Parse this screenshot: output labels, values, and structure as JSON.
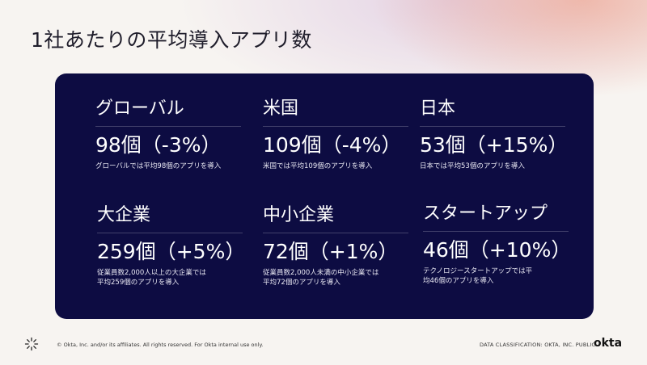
{
  "slide": {
    "title": "1社あたりの平均導入アプリ数"
  },
  "cards": [
    {
      "label": "グローバル",
      "value": "98個（-3%）",
      "desc": "グローバルでは平均98個のアプリを導入"
    },
    {
      "label": "米国",
      "value": "109個（-4%）",
      "desc": "米国では平均109個のアプリを導入"
    },
    {
      "label": "日本",
      "value": "53個（+15%）",
      "desc": "日本では平均53個のアプリを導入"
    },
    {
      "label": "大企業",
      "value": "259個（+5%）",
      "desc": "従業員数2,000人以上の大企業では\n平均259個のアプリを導入"
    },
    {
      "label": "中小企業",
      "value": "72個（+1%）",
      "desc": "従業員数2,000人未満の中小企業では\n平均72個のアプリを導入"
    },
    {
      "label": "スタートアップ",
      "value": "46個（+10%）",
      "desc": "テクノロジースタートアップでは平\n均46個のアプリを導入"
    }
  ],
  "footer": {
    "copyright": "© Okta, Inc. and/or its affiliates. All rights reserved. For Okta internal use only.",
    "classification": "DATA CLASSIFICATION: OKTA, INC. PUBLIC",
    "brand": "okta",
    "logo_icon": "okta-sunburst-icon"
  },
  "colors": {
    "panel": "#0d0c42",
    "background": "#f7f4f1",
    "text_light": "#ffffff"
  }
}
